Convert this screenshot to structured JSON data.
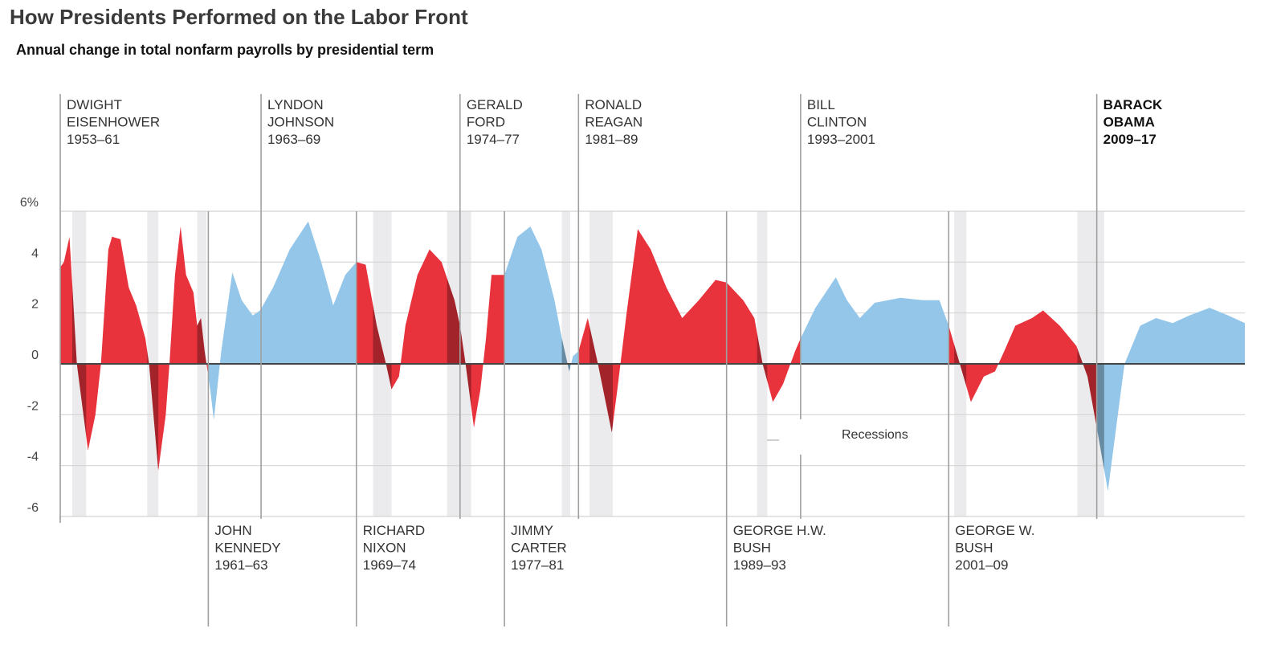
{
  "chart_data": {
    "type": "area",
    "title": "How Presidents Performed on the Labor Front",
    "subtitle": "Annual change in total nonfarm payrolls by presidential term",
    "xlim": [
      1953,
      2017
    ],
    "ylim": [
      -6,
      6
    ],
    "yticks": [
      {
        "value": 6,
        "label": "6%"
      },
      4,
      2,
      0,
      -2,
      -4,
      -6
    ],
    "grid": true,
    "x": [
      1953.0,
      1953.2,
      1953.5,
      1953.9,
      1954.5,
      1954.9,
      1955.2,
      1955.6,
      1955.8,
      1956.25,
      1956.7,
      1957.1,
      1957.6,
      1957.8,
      1958.3,
      1958.7,
      1958.9,
      1959.2,
      1959.5,
      1959.8,
      1960.2,
      1960.4,
      1960.6,
      1960.8,
      1961.1,
      1961.3,
      1961.7,
      1962.3,
      1962.8,
      1963.4,
      1963.8,
      1964.5,
      1965.4,
      1966.4,
      1967.1,
      1967.75,
      1968.4,
      1969.0,
      1969.5,
      1970.1,
      1970.6,
      1970.9,
      1971.3,
      1971.65,
      1972.3,
      1972.95,
      1973.6,
      1974.3,
      1974.6,
      1974.9,
      1975.35,
      1975.7,
      1976.0,
      1976.3,
      1976.65,
      1977.0,
      1977.7,
      1978.4,
      1979.0,
      1979.7,
      1980.1,
      1980.5,
      1980.7,
      1981.0,
      1981.5,
      1982.05,
      1982.8,
      1983.1,
      1983.6,
      1984.2,
      1984.9,
      1985.75,
      1986.6,
      1987.5,
      1988.4,
      1989.0,
      1989.9,
      1990.5,
      1990.95,
      1991.5,
      1992.05,
      1992.7,
      1993.0,
      1993.8,
      1994.9,
      1995.5,
      1996.2,
      1997.0,
      1998.4,
      1999.6,
      2000.5,
      2001.0,
      2001.6,
      2002.2,
      2002.9,
      2003.5,
      2004.0,
      2004.6,
      2005.5,
      2006.1,
      2007.0,
      2007.9,
      2008.5,
      2009.0,
      2009.6,
      2010.05,
      2010.5,
      2011.35,
      2012.2,
      2013.1,
      2014.0,
      2015.1,
      2016.1,
      2017.0
    ],
    "values": [
      3.8,
      4.0,
      5.0,
      0,
      -3.4,
      -2.0,
      0,
      4.5,
      5.0,
      4.9,
      3.0,
      2.3,
      1.0,
      0,
      -4.2,
      -2.0,
      0,
      3.5,
      5.4,
      3.5,
      2.8,
      1.5,
      1.8,
      0.5,
      -1.0,
      -2.2,
      0.5,
      3.6,
      2.5,
      1.9,
      2.1,
      3.0,
      4.5,
      5.6,
      4.0,
      2.3,
      3.5,
      4.0,
      3.9,
      1.5,
      0,
      -1.0,
      -0.5,
      1.5,
      3.5,
      4.5,
      4.0,
      2.5,
      1.5,
      0,
      -2.5,
      -1.0,
      1.0,
      3.5,
      3.5,
      3.5,
      5.0,
      5.4,
      4.5,
      2.5,
      1.0,
      -0.3,
      0.3,
      0.5,
      1.8,
      0,
      -2.7,
      -1.0,
      2.0,
      5.3,
      4.5,
      3.0,
      1.8,
      2.5,
      3.3,
      3.2,
      2.5,
      1.8,
      0,
      -1.5,
      -0.8,
      0.5,
      1.0,
      2.2,
      3.4,
      2.5,
      1.8,
      2.4,
      2.6,
      2.5,
      2.5,
      1.5,
      0,
      -1.5,
      -0.5,
      -0.3,
      0.5,
      1.5,
      1.8,
      2.1,
      1.5,
      0.7,
      -0.5,
      -2.5,
      -5.0,
      -2.5,
      0,
      1.5,
      1.8,
      1.6,
      1.9,
      2.2,
      1.9,
      1.6
    ],
    "presidents": [
      {
        "name": [
          "DWIGHT",
          "EISENHOWER"
        ],
        "term": "1953–61",
        "start": 1953,
        "color": "#e8333d",
        "label": "top"
      },
      {
        "name": [
          "JOHN",
          "KENNEDY"
        ],
        "term": "1961–63",
        "start": 1961,
        "color": "#93c6e9",
        "label": "bottom"
      },
      {
        "name": [
          "LYNDON",
          "JOHNSON"
        ],
        "term": "1963–69",
        "start": 1963.85,
        "color": "#93c6e9",
        "label": "top"
      },
      {
        "name": [
          "RICHARD",
          "NIXON"
        ],
        "term": "1969–74",
        "start": 1969,
        "color": "#e8333d",
        "label": "bottom"
      },
      {
        "name": [
          "GERALD",
          "FORD"
        ],
        "term": "1974–77",
        "start": 1974.6,
        "color": "#e8333d",
        "label": "top"
      },
      {
        "name": [
          "JIMMY",
          "CARTER"
        ],
        "term": "1977–81",
        "start": 1977,
        "color": "#93c6e9",
        "label": "bottom"
      },
      {
        "name": [
          "RONALD",
          "REAGAN"
        ],
        "term": "1981–89",
        "start": 1981,
        "color": "#e8333d",
        "label": "top"
      },
      {
        "name": [
          "GEORGE H.W.",
          "BUSH"
        ],
        "term": "1989–93",
        "start": 1989,
        "color": "#e8333d",
        "label": "bottom"
      },
      {
        "name": [
          "BILL",
          "CLINTON"
        ],
        "term": "1993–2001",
        "start": 1993,
        "color": "#93c6e9",
        "label": "top"
      },
      {
        "name": [
          "GEORGE W.",
          "BUSH"
        ],
        "term": "2001–09",
        "start": 2001,
        "color": "#e8333d",
        "label": "bottom"
      },
      {
        "name": [
          "BARACK",
          "OBAMA"
        ],
        "term": "2009–17",
        "start": 2009,
        "color": "#93c6e9",
        "label": "top",
        "bold": true
      }
    ],
    "recessions": [
      [
        1953.65,
        1954.4
      ],
      [
        1957.7,
        1958.3
      ],
      [
        1960.4,
        1960.9
      ],
      [
        1969.9,
        1970.9
      ],
      [
        1973.9,
        1975.2
      ],
      [
        1980.1,
        1980.55
      ],
      [
        1981.6,
        1982.85
      ],
      [
        1990.65,
        1991.2
      ],
      [
        2001.3,
        2001.95
      ],
      [
        2007.95,
        2009.4
      ]
    ],
    "recession_label": "Recessions"
  }
}
